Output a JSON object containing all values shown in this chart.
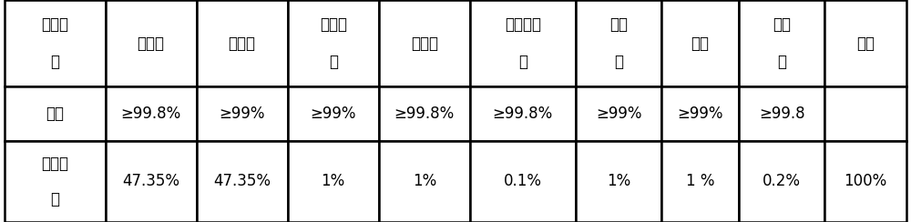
{
  "col_headers_line1": [
    "熔盐组",
    "",
    "",
    "氢氧化",
    "",
    "四氟硼酸",
    "硅藻",
    "",
    "氧化",
    ""
  ],
  "col_headers_line2": [
    "分",
    "硝酸钾",
    "硝酸钠",
    "钾",
    "碳酸钾",
    "钾",
    "土",
    "粘土",
    "铈",
    "总计"
  ],
  "row1_label_line1": "纯度",
  "row1_label_line2": "",
  "row1_values": [
    "≥99.8%",
    "≥99%",
    "≥99%",
    "≥99.8%",
    "≥99.8%",
    "≥99%",
    "≥99%",
    "≥99.8",
    ""
  ],
  "row2_label_line1": "质量分",
  "row2_label_line2": "数",
  "row2_values": [
    "47.35%",
    "47.35%",
    "1%",
    "1%",
    "0.1%",
    "1%",
    "1 %",
    "0.2%",
    "100%"
  ],
  "bg_color": "#ffffff",
  "border_color": "#000000",
  "text_color": "#000000",
  "font_size": 12,
  "header_font_size": 12
}
